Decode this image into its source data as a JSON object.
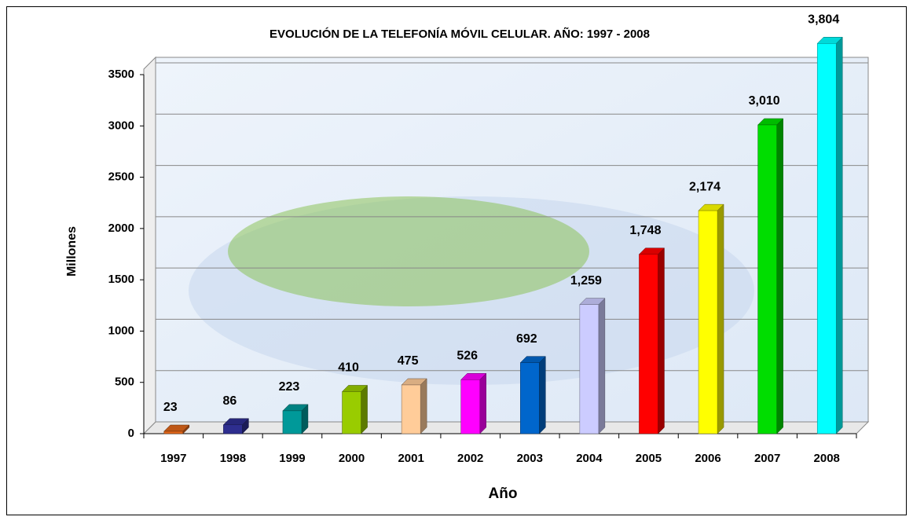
{
  "chart_data": {
    "type": "bar",
    "title": "EVOLUCIÓN DE LA TELEFONÍA MÓVIL CELULAR. AÑO: 1997 - 2008",
    "xlabel": "Año",
    "ylabel": "Millones",
    "categories": [
      "1997",
      "1998",
      "1999",
      "2000",
      "2001",
      "2002",
      "2003",
      "2004",
      "2005",
      "2006",
      "2007",
      "2008"
    ],
    "values": [
      23,
      86,
      223,
      410,
      475,
      526,
      692,
      1259,
      1748,
      2174,
      3010,
      3804
    ],
    "value_labels": [
      "23",
      "86",
      "223",
      "410",
      "475",
      "526",
      "692",
      "1,259",
      "1,748",
      "2,174",
      "3,010",
      "3,804"
    ],
    "colors": [
      "#e0661a",
      "#2e2e8f",
      "#009999",
      "#99cc00",
      "#ffcc99",
      "#ff00ff",
      "#0066cc",
      "#ccccff",
      "#ff0000",
      "#ffff00",
      "#00dd00",
      "#00ffff"
    ],
    "ylim": [
      0,
      3500
    ],
    "yticks": [
      0,
      500,
      1000,
      1500,
      2000,
      2500,
      3000,
      3500
    ],
    "grid": true
  }
}
